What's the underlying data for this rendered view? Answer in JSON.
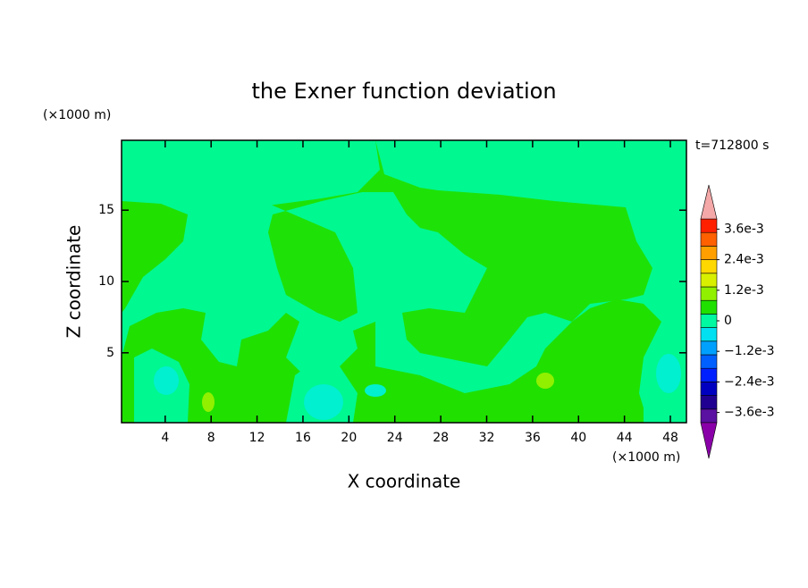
{
  "chart_data": {
    "type": "contour",
    "title": "the Exner function deviation",
    "x_label": "X coordinate",
    "y_label": "Z coordinate",
    "x_unit": "(×1000 m)",
    "y_unit": "(×1000 m)",
    "annotation": "t=712800 s",
    "xlim": [
      0.2,
      49.4
    ],
    "ylim": [
      0.1,
      19.9
    ],
    "xticks": [
      4,
      8,
      12,
      16,
      20,
      24,
      28,
      32,
      36,
      40,
      44,
      48
    ],
    "yticks": [
      5,
      10,
      15
    ],
    "colorbar": {
      "lim": [
        -0.004,
        0.004
      ],
      "ticks": [
        {
          "value": 0.0036,
          "label": "3.6e-3"
        },
        {
          "value": 0.0024,
          "label": "2.4e-3"
        },
        {
          "value": 0.0012,
          "label": "1.2e-3"
        },
        0,
        {
          "value": -0.0012,
          "label": "−1.2e-3"
        },
        {
          "value": -0.0024,
          "label": "−2.4e-3"
        },
        {
          "value": -0.0036,
          "label": "−3.6e-3"
        }
      ],
      "colors": [
        "#5a10a0",
        "#200090",
        "#0000c0",
        "#0020ff",
        "#0060ff",
        "#00a0ff",
        "#00e0f0",
        "#00f8a0",
        "#20e000",
        "#90f000",
        "#d8f000",
        "#ffd800",
        "#ffa000",
        "#ff6000",
        "#ff2000"
      ],
      "over_color": "#f4a8a8",
      "under_color": "#8a00a8"
    }
  }
}
